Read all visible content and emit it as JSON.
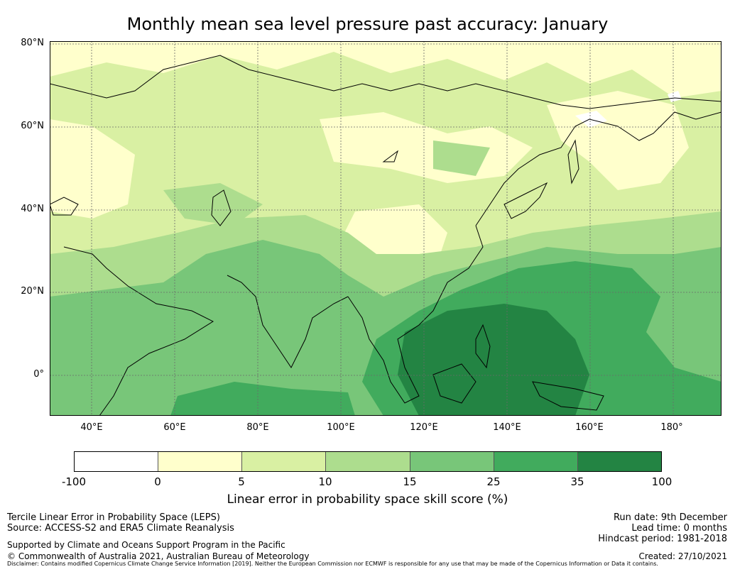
{
  "title": "Monthly mean sea level pressure past accuracy: January",
  "colors": {
    "c0": "#ffffff",
    "c1": "#ffffcc",
    "c2": "#d9f0a3",
    "c3": "#addd8e",
    "c4": "#78c679",
    "c5": "#41ab5d",
    "c6": "#238443",
    "coast": "#000000",
    "grid": "#6a6a6a"
  },
  "map": {
    "lat_labels": [
      "80°N",
      "60°N",
      "40°N",
      "20°N",
      "0°"
    ],
    "lon_labels": [
      "40°E",
      "60°E",
      "80°E",
      "100°E",
      "120°E",
      "140°E",
      "160°E",
      "180°"
    ]
  },
  "colorbar": {
    "ticks": [
      "-100",
      "0",
      "5",
      "10",
      "15",
      "25",
      "35",
      "100"
    ],
    "label": "Linear error in probability space skill score (%)"
  },
  "footer": {
    "line1": "Tercile Linear Error in Probability Space (LEPS)",
    "line2": "Source: ACCESS-S2 and ERA5 Climate Reanalysis",
    "support": "Supported by Climate and Oceans Support Program in the Pacific",
    "copyright": "© Commonwealth of Australia 2021, Australian Bureau of Meteorology",
    "run_date": "Run date: 9th December",
    "lead_time": "Lead time: 0 months",
    "hindcast": "Hindcast period: 1981-2018",
    "created": "Created: 27/10/2021",
    "disclaimer": "Disclaimer: Contains modified Copernicus Climate Change Service Information [2019]. Neither the European Commission nor ECMWF is responsible for any use that may be made of the Copernicus Information or Data it contains."
  }
}
